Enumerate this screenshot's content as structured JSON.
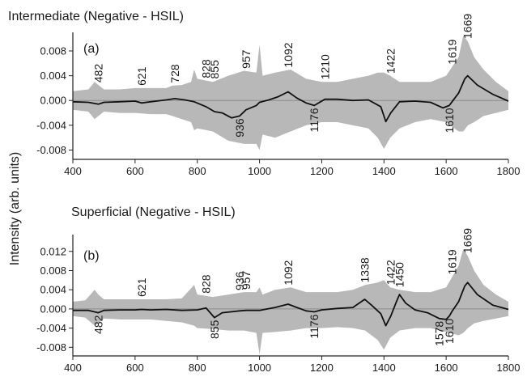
{
  "shared_ylabel": "Intensity (arb. units)",
  "colors": {
    "band": "#b8b8b8",
    "line": "#111111",
    "zero": "#8c8c8c",
    "axis": "#222222"
  },
  "chart_data": [
    {
      "type": "line",
      "title": "Intermediate (Negative - HSIL)",
      "panel_label": "(a)",
      "xlim": [
        400,
        1800
      ],
      "ylim": [
        -0.0095,
        0.011
      ],
      "xticks": [
        400,
        600,
        800,
        1000,
        1200,
        1400,
        1600,
        1800
      ],
      "yticks": [
        0.008,
        0.004,
        0.0,
        -0.004,
        -0.008
      ],
      "ytick_labels": [
        "0.008",
        "0.004",
        "0.000",
        "-0.004",
        "-0.008"
      ],
      "grid": false,
      "zero_line": true,
      "series": [
        {
          "x": [
            400,
            450,
            482,
            500,
            550,
            600,
            621,
            650,
            700,
            728,
            760,
            790,
            828,
            855,
            880,
            910,
            936,
            957,
            990,
            1000,
            1030,
            1060,
            1092,
            1120,
            1150,
            1176,
            1210,
            1250,
            1300,
            1350,
            1390,
            1406,
            1422,
            1450,
            1500,
            1550,
            1590,
            1610,
            1619,
            1640,
            1660,
            1669,
            1700,
            1750,
            1800
          ],
          "y": [
            -0.0002,
            -0.0003,
            -0.0006,
            -0.0003,
            -0.0002,
            -0.0001,
            -0.0004,
            -0.0002,
            0.0001,
            0.0003,
            0.0001,
            -0.0002,
            -0.001,
            -0.0018,
            -0.002,
            -0.0028,
            -0.0025,
            -0.0015,
            -0.0008,
            -0.0003,
            0.0001,
            0.0006,
            0.0014,
            0.0004,
            -0.0004,
            -0.0008,
            0.0002,
            0.0002,
            0.0,
            0.0001,
            -0.001,
            -0.0034,
            -0.002,
            -0.0002,
            -0.0001,
            -0.0003,
            -0.0012,
            -0.0008,
            -0.0002,
            0.0012,
            0.0035,
            0.004,
            0.0025,
            0.001,
            -0.0001
          ]
        }
      ],
      "band": {
        "x": [
          400,
          450,
          470,
          482,
          500,
          550,
          600,
          650,
          700,
          720,
          750,
          780,
          790,
          800,
          850,
          900,
          950,
          990,
          1000,
          1010,
          1050,
          1100,
          1150,
          1200,
          1250,
          1300,
          1350,
          1380,
          1400,
          1420,
          1450,
          1500,
          1550,
          1600,
          1640,
          1655,
          1670,
          1690,
          1720,
          1760,
          1800
        ],
        "upper": [
          0.0015,
          0.0018,
          0.003,
          0.0025,
          0.0018,
          0.0018,
          0.002,
          0.002,
          0.002,
          0.0024,
          0.0025,
          0.003,
          0.005,
          0.0035,
          0.003,
          0.004,
          0.0048,
          0.0045,
          0.009,
          0.004,
          0.0045,
          0.005,
          0.0035,
          0.003,
          0.003,
          0.0035,
          0.004,
          0.0045,
          0.0045,
          0.004,
          0.003,
          0.003,
          0.003,
          0.004,
          0.007,
          0.0105,
          0.0095,
          0.007,
          0.005,
          0.003,
          0.0015
        ],
        "lower": [
          -0.0015,
          -0.0018,
          -0.003,
          -0.0025,
          -0.0018,
          -0.002,
          -0.002,
          -0.0022,
          -0.0022,
          -0.0025,
          -0.003,
          -0.0035,
          -0.0048,
          -0.0045,
          -0.005,
          -0.0065,
          -0.007,
          -0.007,
          -0.008,
          -0.0055,
          -0.006,
          -0.005,
          -0.004,
          -0.0035,
          -0.0035,
          -0.004,
          -0.0045,
          -0.006,
          -0.0078,
          -0.006,
          -0.0045,
          -0.0035,
          -0.003,
          -0.0035,
          -0.005,
          -0.005,
          -0.004,
          -0.0035,
          -0.0025,
          -0.002,
          -0.0015
        ]
      },
      "annotations": [
        {
          "text": "482",
          "x": 482,
          "side": "above"
        },
        {
          "text": "621",
          "x": 621,
          "side": "above"
        },
        {
          "text": "728",
          "x": 728,
          "side": "above"
        },
        {
          "text": "828",
          "x": 828,
          "side": "above"
        },
        {
          "text": "855",
          "x": 855,
          "side": "above"
        },
        {
          "text": "936",
          "x": 936,
          "side": "below"
        },
        {
          "text": "957",
          "x": 957,
          "side": "above"
        },
        {
          "text": "1092",
          "x": 1092,
          "side": "above"
        },
        {
          "text": "1176",
          "x": 1176,
          "side": "below"
        },
        {
          "text": "1210",
          "x": 1210,
          "side": "above"
        },
        {
          "text": "1422",
          "x": 1422,
          "side": "above"
        },
        {
          "text": "1610",
          "x": 1610,
          "side": "below"
        },
        {
          "text": "1619",
          "x": 1619,
          "side": "above"
        },
        {
          "text": "1669",
          "x": 1669,
          "side": "above"
        }
      ]
    },
    {
      "type": "line",
      "title": "Superficial (Negative - HSIL)",
      "panel_label": "(b)",
      "xlim": [
        400,
        1800
      ],
      "ylim": [
        -0.0098,
        0.0155
      ],
      "xticks": [
        400,
        600,
        800,
        1000,
        1200,
        1400,
        1600,
        1800
      ],
      "yticks": [
        0.012,
        0.008,
        0.004,
        0.0,
        -0.004,
        -0.008
      ],
      "ytick_labels": [
        "0.012",
        "0.008",
        "0.004",
        "0.000",
        "-0.004",
        "-0.008"
      ],
      "grid": false,
      "zero_line": true,
      "series": [
        {
          "x": [
            400,
            450,
            482,
            500,
            550,
            600,
            621,
            650,
            700,
            750,
            800,
            828,
            855,
            880,
            936,
            957,
            1000,
            1050,
            1092,
            1120,
            1150,
            1176,
            1200,
            1250,
            1300,
            1338,
            1360,
            1390,
            1406,
            1422,
            1440,
            1450,
            1470,
            1500,
            1540,
            1578,
            1600,
            1610,
            1619,
            1640,
            1660,
            1669,
            1700,
            1750,
            1800
          ],
          "y": [
            -0.0003,
            -0.0003,
            -0.0008,
            -0.0003,
            -0.0002,
            -0.0002,
            -0.0001,
            -0.0002,
            -0.0001,
            -0.0003,
            -0.0002,
            0.0002,
            -0.0018,
            -0.0008,
            -0.0004,
            -0.0003,
            -0.0003,
            0.0003,
            0.001,
            0.0003,
            -0.0004,
            -0.0006,
            -0.0002,
            0.0001,
            0.0003,
            0.002,
            0.0008,
            -0.001,
            -0.0035,
            -0.0015,
            0.0015,
            0.003,
            0.0012,
            -0.0002,
            -0.0008,
            -0.002,
            -0.0022,
            -0.0015,
            -0.0005,
            0.0015,
            0.0048,
            0.0055,
            0.003,
            0.0008,
            -0.0001
          ]
        }
      ],
      "band": {
        "x": [
          400,
          440,
          470,
          482,
          500,
          550,
          600,
          650,
          700,
          750,
          790,
          800,
          850,
          900,
          950,
          990,
          1000,
          1010,
          1050,
          1100,
          1150,
          1200,
          1250,
          1300,
          1340,
          1380,
          1400,
          1420,
          1450,
          1500,
          1550,
          1600,
          1640,
          1655,
          1670,
          1690,
          1720,
          1760,
          1800
        ],
        "upper": [
          0.0015,
          0.0018,
          0.004,
          0.003,
          0.002,
          0.002,
          0.002,
          0.002,
          0.002,
          0.0022,
          0.005,
          0.003,
          0.0025,
          0.003,
          0.0035,
          0.0035,
          0.0045,
          0.003,
          0.004,
          0.0045,
          0.0035,
          0.0035,
          0.0035,
          0.004,
          0.005,
          0.0055,
          0.006,
          0.0045,
          0.004,
          0.0035,
          0.0035,
          0.0045,
          0.009,
          0.0125,
          0.011,
          0.008,
          0.005,
          0.003,
          0.0015
        ],
        "lower": [
          -0.0015,
          -0.0018,
          -0.0035,
          -0.003,
          -0.002,
          -0.0022,
          -0.0022,
          -0.0022,
          -0.0025,
          -0.0028,
          -0.0035,
          -0.004,
          -0.0042,
          -0.0045,
          -0.0045,
          -0.005,
          -0.0095,
          -0.005,
          -0.0048,
          -0.0045,
          -0.004,
          -0.004,
          -0.0038,
          -0.004,
          -0.0045,
          -0.0065,
          -0.0085,
          -0.006,
          -0.0045,
          -0.004,
          -0.004,
          -0.0048,
          -0.0055,
          -0.005,
          -0.004,
          -0.003,
          -0.0025,
          -0.002,
          -0.0015
        ]
      },
      "annotations": [
        {
          "text": "482",
          "x": 482,
          "side": "below"
        },
        {
          "text": "621",
          "x": 621,
          "side": "above"
        },
        {
          "text": "828",
          "x": 828,
          "side": "above"
        },
        {
          "text": "855",
          "x": 855,
          "side": "below"
        },
        {
          "text": "936",
          "x": 936,
          "side": "above"
        },
        {
          "text": "957",
          "x": 957,
          "side": "above"
        },
        {
          "text": "1092",
          "x": 1092,
          "side": "above"
        },
        {
          "text": "1176",
          "x": 1176,
          "side": "below"
        },
        {
          "text": "1338",
          "x": 1338,
          "side": "above"
        },
        {
          "text": "1422",
          "x": 1422,
          "side": "above"
        },
        {
          "text": "1450",
          "x": 1450,
          "side": "above"
        },
        {
          "text": "1578",
          "x": 1578,
          "side": "below"
        },
        {
          "text": "1610",
          "x": 1610,
          "side": "below"
        },
        {
          "text": "1619",
          "x": 1619,
          "side": "above"
        },
        {
          "text": "1669",
          "x": 1669,
          "side": "above"
        }
      ]
    }
  ]
}
